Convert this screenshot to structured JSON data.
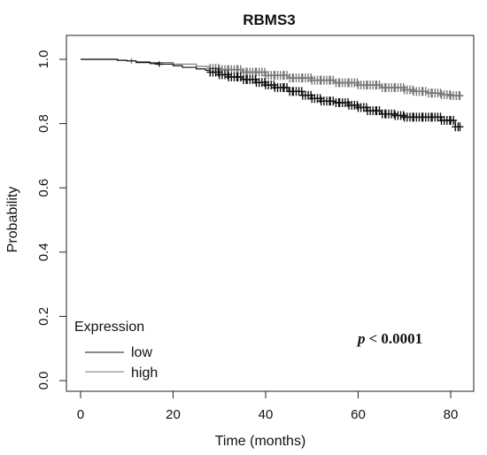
{
  "chart_data": {
    "type": "line",
    "subtype": "kaplan-meier",
    "title": "RBMS3",
    "xlabel": "Time (months)",
    "ylabel": "Probability",
    "xlim": [
      0,
      83
    ],
    "ylim": [
      0,
      1
    ],
    "x_ticks": [
      0,
      20,
      40,
      60,
      80
    ],
    "y_ticks": [
      0.0,
      0.2,
      0.4,
      0.6,
      0.8,
      1.0
    ],
    "x_tick_labels": [
      "0",
      "20",
      "40",
      "60",
      "80"
    ],
    "y_tick_labels": [
      "0.0",
      "0.2",
      "0.4",
      "0.6",
      "0.8",
      "1.0"
    ],
    "grid": false,
    "legend": {
      "title": "Expression",
      "placement": "bottom-left",
      "entries": [
        "low",
        "high"
      ]
    },
    "annotation": {
      "p_symbol": "p",
      "p_text": "< 0.0001"
    },
    "series": [
      {
        "name": "low",
        "color": "#111111",
        "x": [
          0,
          5,
          8,
          10,
          12,
          15,
          17,
          20,
          22,
          25,
          27,
          28,
          30,
          32,
          35,
          38,
          40,
          42,
          45,
          48,
          50,
          52,
          55,
          58,
          60,
          62,
          65,
          68,
          70,
          72,
          75,
          78,
          80,
          81,
          82
        ],
        "y": [
          1.0,
          1.0,
          0.997,
          0.995,
          0.99,
          0.987,
          0.985,
          0.98,
          0.975,
          0.97,
          0.966,
          0.96,
          0.952,
          0.945,
          0.937,
          0.928,
          0.92,
          0.912,
          0.9,
          0.888,
          0.878,
          0.87,
          0.865,
          0.857,
          0.85,
          0.84,
          0.83,
          0.825,
          0.82,
          0.82,
          0.82,
          0.81,
          0.81,
          0.79,
          0.79
        ],
        "censor_x": [
          17,
          28,
          30,
          32,
          34,
          36,
          38,
          40,
          42,
          44,
          46,
          48,
          50,
          52,
          54,
          56,
          58,
          60,
          62,
          64,
          66,
          68,
          70,
          72,
          74,
          76,
          78,
          80,
          81,
          82
        ]
      },
      {
        "name": "high",
        "color": "#777777",
        "x": [
          0,
          5,
          8,
          10,
          12,
          15,
          20,
          25,
          28,
          30,
          35,
          40,
          45,
          50,
          55,
          60,
          65,
          70,
          72,
          75,
          78,
          80,
          82
        ],
        "y": [
          1.0,
          1.0,
          0.997,
          0.995,
          0.993,
          0.99,
          0.985,
          0.978,
          0.972,
          0.968,
          0.96,
          0.95,
          0.942,
          0.935,
          0.927,
          0.92,
          0.912,
          0.905,
          0.9,
          0.895,
          0.89,
          0.887,
          0.887
        ],
        "censor_x": [
          11,
          28,
          30,
          32,
          34,
          36,
          38,
          40,
          42,
          44,
          46,
          48,
          50,
          52,
          54,
          56,
          58,
          60,
          62,
          64,
          66,
          68,
          70,
          72,
          74,
          76,
          78,
          80,
          82
        ]
      }
    ]
  }
}
